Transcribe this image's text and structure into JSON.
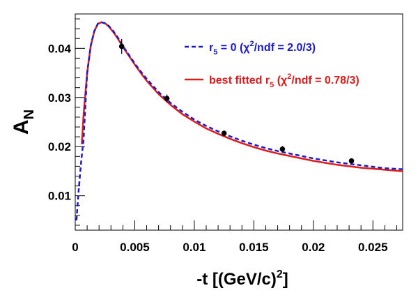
{
  "chart_data": {
    "type": "line",
    "title": "",
    "xlabel": {
      "prefix": "-t [(GeV/c)",
      "sup": "2",
      "suffix": "]"
    },
    "ylabel": {
      "main": "A",
      "sub": "N"
    },
    "xlim": [
      0,
      0.0275
    ],
    "ylim": [
      0.003,
      0.047
    ],
    "x_ticks": [
      0,
      0.005,
      0.01,
      0.015,
      0.02,
      0.025
    ],
    "x_tick_labels": [
      "0",
      "0.005",
      "0.01",
      "0.015",
      "0.02",
      "0.025"
    ],
    "y_ticks": [
      0.01,
      0.02,
      0.03,
      0.04
    ],
    "y_tick_labels": [
      "0.01",
      "0.02",
      "0.03",
      "0.04"
    ],
    "legend": {
      "placement": "top-right",
      "entries": [
        {
          "series": "r5_zero",
          "parts": [
            {
              "t": "r"
            },
            {
              "t": "5",
              "sub": true
            },
            {
              "t": " = 0 ("
            },
            {
              "t": "χ"
            },
            {
              "t": "2",
              "sup": true
            },
            {
              "t": "/ndf = 2.0/3)"
            }
          ]
        },
        {
          "series": "best_fit",
          "parts": [
            {
              "t": "best fitted r"
            },
            {
              "t": "5",
              "sub": true
            },
            {
              "t": " ("
            },
            {
              "t": "χ"
            },
            {
              "t": "2",
              "sup": true
            },
            {
              "t": "/ndf = 0.78/3)"
            }
          ]
        }
      ]
    },
    "series": [
      {
        "id": "r5_zero",
        "style": "dashed",
        "color": "#1a1acc",
        "x": [
          0.0001,
          0.0003,
          0.0005,
          0.0007,
          0.001,
          0.0013,
          0.0016,
          0.0019,
          0.0022,
          0.0025,
          0.0028,
          0.0032,
          0.0036,
          0.004,
          0.0045,
          0.005,
          0.0055,
          0.006,
          0.007,
          0.008,
          0.009,
          0.01,
          0.011,
          0.012,
          0.013,
          0.014,
          0.015,
          0.016,
          0.017,
          0.018,
          0.019,
          0.02,
          0.021,
          0.022,
          0.023,
          0.024,
          0.025,
          0.026,
          0.0275
        ],
        "y": [
          0.005,
          0.0115,
          0.017,
          0.0215,
          0.035,
          0.0405,
          0.0435,
          0.045,
          0.0453,
          0.0451,
          0.0446,
          0.0435,
          0.0421,
          0.0405,
          0.0387,
          0.0369,
          0.0353,
          0.0338,
          0.0311,
          0.0289,
          0.0271,
          0.0255,
          0.0242,
          0.0231,
          0.0221,
          0.0212,
          0.0204,
          0.0197,
          0.0191,
          0.0186,
          0.0181,
          0.0176,
          0.0172,
          0.0168,
          0.0165,
          0.0162,
          0.0159,
          0.0156,
          0.0154
        ]
      },
      {
        "id": "best_fit",
        "style": "solid",
        "color": "#e01b1b",
        "x": [
          0.00055,
          0.0007,
          0.001,
          0.0013,
          0.0016,
          0.0019,
          0.0022,
          0.0025,
          0.0028,
          0.0032,
          0.0036,
          0.004,
          0.0045,
          0.005,
          0.0055,
          0.006,
          0.007,
          0.008,
          0.009,
          0.01,
          0.011,
          0.012,
          0.013,
          0.014,
          0.015,
          0.016,
          0.017,
          0.018,
          0.019,
          0.02,
          0.021,
          0.022,
          0.023,
          0.024,
          0.025,
          0.026,
          0.0275
        ],
        "y": [
          0.0205,
          0.0265,
          0.035,
          0.0405,
          0.0435,
          0.045,
          0.0453,
          0.0451,
          0.0445,
          0.0433,
          0.0419,
          0.0403,
          0.0385,
          0.0367,
          0.035,
          0.0334,
          0.0307,
          0.0285,
          0.0266,
          0.0251,
          0.0237,
          0.0226,
          0.0216,
          0.0207,
          0.0199,
          0.0192,
          0.0186,
          0.0181,
          0.0176,
          0.0171,
          0.0167,
          0.0163,
          0.016,
          0.0157,
          0.0155,
          0.0153,
          0.015
        ]
      }
    ],
    "data_points": [
      {
        "x": 0.0039,
        "y": 0.0404,
        "err": 0.0015
      },
      {
        "x": 0.0077,
        "y": 0.0298,
        "err": 0.0008
      },
      {
        "x": 0.0125,
        "y": 0.0227,
        "err": 0.0006
      },
      {
        "x": 0.0174,
        "y": 0.0195,
        "err": 0.0006
      },
      {
        "x": 0.0232,
        "y": 0.0171,
        "err": 0.0005
      }
    ]
  }
}
